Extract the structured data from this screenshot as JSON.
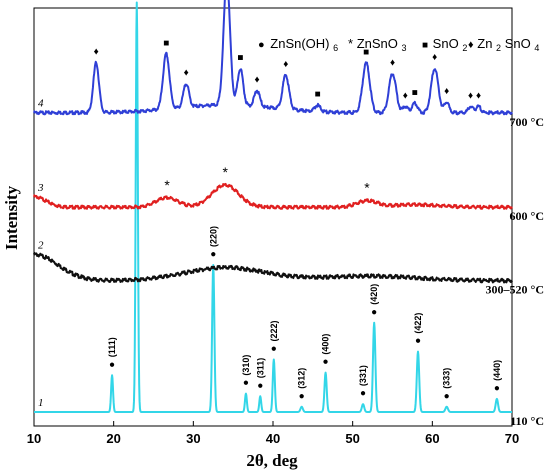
{
  "chart_data": {
    "type": "line",
    "xlabel": "2θ, deg",
    "ylabel": "Intensity",
    "xlim": [
      10,
      70
    ],
    "x_ticks": [
      10,
      20,
      30,
      40,
      50,
      60,
      70
    ],
    "legend": {
      "placement": "top-right",
      "items": [
        {
          "symbol": "●",
          "label": "ZnSn(OH)",
          "sub": "6"
        },
        {
          "symbol": "*",
          "label": "ZnSnO",
          "sub": "3"
        },
        {
          "symbol": "■",
          "label": "SnO",
          "sub": "2"
        },
        {
          "symbol": "♦",
          "label": "Zn",
          "sub": "2",
          "label2": "SnO",
          "sub2": "4"
        }
      ]
    },
    "series": [
      {
        "index": "1",
        "temperature": "110 °C",
        "color": "#33d6e8",
        "baseline": 0.0,
        "noise": 0.0,
        "peaks": [
          [
            19.8,
            7.0,
            0.12
          ],
          [
            22.9,
            78.0,
            0.13
          ],
          [
            32.5,
            28.0,
            0.14
          ],
          [
            36.6,
            3.5,
            0.12
          ],
          [
            38.4,
            3.0,
            0.12
          ],
          [
            40.1,
            10.0,
            0.13
          ],
          [
            43.6,
            1.0,
            0.15
          ],
          [
            46.6,
            7.5,
            0.14
          ],
          [
            51.3,
            1.5,
            0.15
          ],
          [
            52.7,
            17.0,
            0.15
          ],
          [
            58.2,
            11.5,
            0.15
          ],
          [
            61.8,
            1.0,
            0.16
          ],
          [
            68.1,
            2.5,
            0.15
          ]
        ],
        "markers": [
          {
            "x": 19.8,
            "sym": "●",
            "label": "(111)"
          },
          {
            "x": 22.9,
            "sym": "●",
            "label": "(200)"
          },
          {
            "x": 32.5,
            "sym": "●",
            "label": "(220)"
          },
          {
            "x": 36.6,
            "sym": "●",
            "label": "(310)"
          },
          {
            "x": 38.4,
            "sym": "●",
            "label": "(311)"
          },
          {
            "x": 40.1,
            "sym": "●",
            "label": "(222)"
          },
          {
            "x": 43.6,
            "sym": "●",
            "label": "(312)"
          },
          {
            "x": 46.6,
            "sym": "●",
            "label": "(400)"
          },
          {
            "x": 51.3,
            "sym": "●",
            "label": "(331)"
          },
          {
            "x": 52.7,
            "sym": "●",
            "label": "(420)"
          },
          {
            "x": 58.2,
            "sym": "●",
            "label": "(422)"
          },
          {
            "x": 61.8,
            "sym": "●",
            "label": "(333)"
          },
          {
            "x": 68.1,
            "sym": "●",
            "label": "(440)"
          }
        ]
      },
      {
        "index": "2",
        "temperature": "300–520 °C",
        "color": "#111111",
        "baseline": 25.0,
        "noise": 0.35,
        "humps": [
          [
            10,
            5.0,
            3.0
          ],
          [
            34,
            2.5,
            5.0
          ],
          [
            52,
            0.9,
            6.0
          ]
        ],
        "markers": []
      },
      {
        "index": "3",
        "temperature": "600 °C",
        "color": "#e02020",
        "baseline": 39.0,
        "noise": 0.3,
        "humps": [
          [
            10,
            2.0,
            1.5
          ],
          [
            26.7,
            1.8,
            1.4
          ],
          [
            34.0,
            4.2,
            1.7
          ],
          [
            51.8,
            1.2,
            1.3
          ],
          [
            58,
            0.5,
            3.0
          ]
        ],
        "markers": [
          {
            "x": 26.7,
            "sym": "*"
          },
          {
            "x": 34.0,
            "sym": "*"
          },
          {
            "x": 51.8,
            "sym": "*"
          }
        ]
      },
      {
        "index": "4",
        "temperature": "700 °C",
        "color": "#2f3fd6",
        "baseline": 57.0,
        "noise": 0.3,
        "peaks": [
          [
            17.8,
            9.5,
            0.35
          ],
          [
            26.6,
            10.5,
            0.4
          ],
          [
            29.1,
            4.5,
            0.35
          ],
          [
            34.2,
            24.0,
            0.4
          ],
          [
            35.9,
            7.0,
            0.35
          ],
          [
            38.0,
            3.0,
            0.35
          ],
          [
            41.6,
            6.5,
            0.4
          ],
          [
            45.6,
            1.2,
            0.35
          ],
          [
            51.7,
            9.5,
            0.45
          ],
          [
            55.0,
            7.5,
            0.45
          ],
          [
            56.6,
            1.2,
            0.3
          ],
          [
            57.8,
            1.8,
            0.35
          ],
          [
            60.3,
            8.5,
            0.45
          ],
          [
            61.8,
            2.0,
            0.3
          ],
          [
            64.8,
            1.2,
            0.3
          ],
          [
            65.8,
            1.2,
            0.3
          ]
        ],
        "humps": [
          [
            34,
            1.5,
            6.0
          ]
        ],
        "markers": [
          {
            "x": 17.8,
            "sym": "♦"
          },
          {
            "x": 26.6,
            "sym": "■"
          },
          {
            "x": 29.1,
            "sym": "♦"
          },
          {
            "x": 34.2,
            "sym": "♦"
          },
          {
            "x": 35.9,
            "sym": "■"
          },
          {
            "x": 38.0,
            "sym": "♦"
          },
          {
            "x": 41.6,
            "sym": "♦"
          },
          {
            "x": 45.6,
            "sym": "■"
          },
          {
            "x": 51.7,
            "sym": "■"
          },
          {
            "x": 55.0,
            "sym": "♦"
          },
          {
            "x": 56.6,
            "sym": "♦"
          },
          {
            "x": 57.8,
            "sym": "■"
          },
          {
            "x": 60.3,
            "sym": "♦"
          },
          {
            "x": 61.8,
            "sym": "♦"
          },
          {
            "x": 64.8,
            "sym": "♦"
          },
          {
            "x": 65.8,
            "sym": "♦"
          }
        ]
      }
    ]
  }
}
